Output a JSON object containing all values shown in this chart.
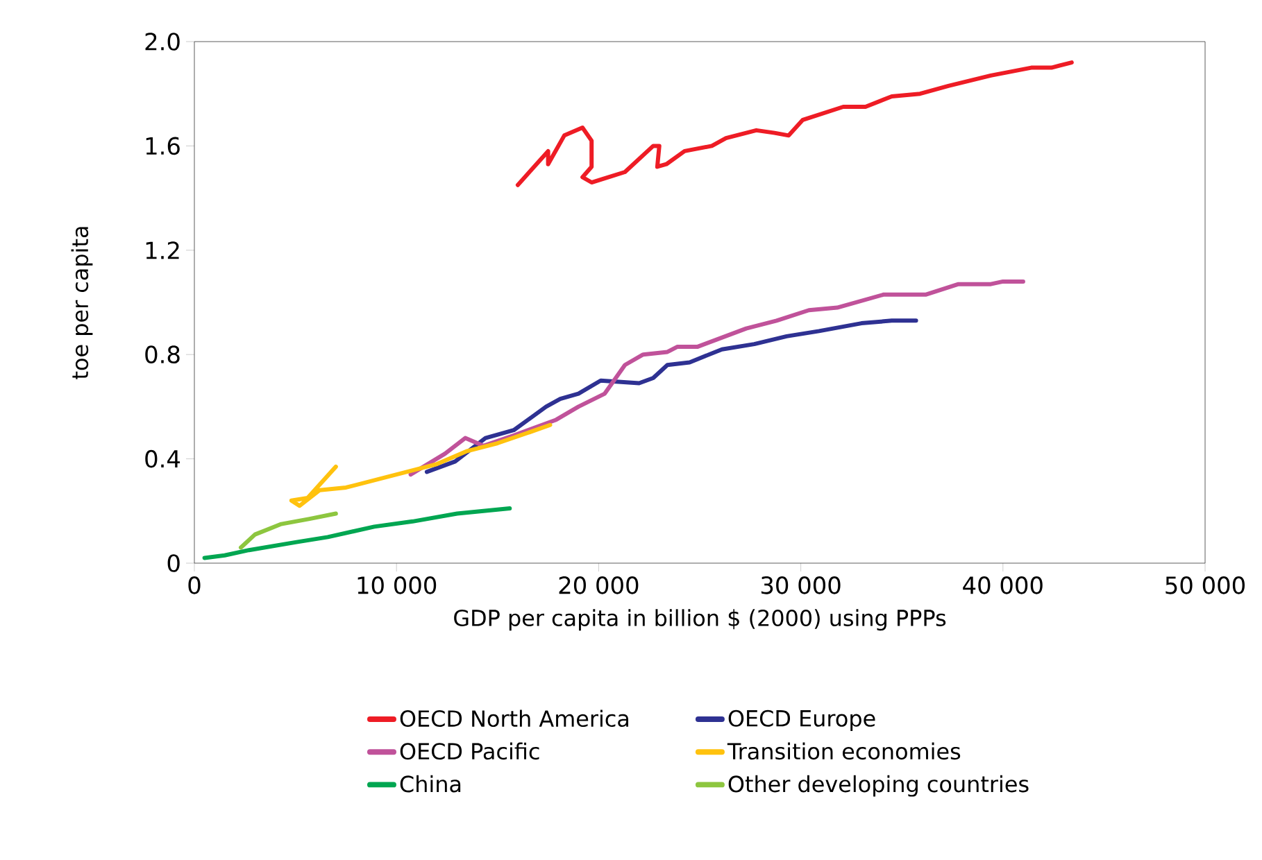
{
  "chart_data": {
    "type": "line",
    "xlabel": "GDP per capita in billion $ (2000) using PPPs",
    "ylabel": "toe per capita",
    "xlim": [
      0,
      50000
    ],
    "ylim": [
      0,
      2.0
    ],
    "xticks": [
      0,
      {
        "value": 10000,
        "label": "10 000"
      },
      {
        "value": 20000,
        "label": "20 000"
      },
      {
        "value": 30000,
        "label": "30 000"
      },
      {
        "value": 40000,
        "label": "40 000"
      },
      {
        "value": 50000,
        "label": "50 000"
      }
    ],
    "yticks": [
      0,
      0.4,
      0.8,
      1.2,
      1.6,
      {
        "value": 2.0,
        "label": "2.0"
      }
    ],
    "grid": false,
    "legend": "bottom",
    "marker": "none",
    "line_style": "solid",
    "series": [
      {
        "name": "OECD North America",
        "color": "#ee1c25",
        "x": [
          16000,
          17500,
          17500,
          18300,
          19200,
          19650,
          19650,
          19200,
          19650,
          21300,
          22700,
          23000,
          22900,
          23350,
          24250,
          25600,
          26300,
          27800,
          28700,
          29400,
          30100,
          32100,
          33200,
          34500,
          35900,
          37300,
          39400,
          41400,
          42400,
          43400
        ],
        "values": [
          1.45,
          1.58,
          1.53,
          1.64,
          1.67,
          1.62,
          1.52,
          1.48,
          1.46,
          1.5,
          1.6,
          1.6,
          1.52,
          1.53,
          1.58,
          1.6,
          1.63,
          1.66,
          1.65,
          1.64,
          1.7,
          1.75,
          1.75,
          1.79,
          1.8,
          1.83,
          1.87,
          1.9,
          1.9,
          1.92
        ]
      },
      {
        "name": "OECD Europe",
        "color": "#2e3192",
        "x": [
          11500,
          12900,
          14400,
          15800,
          17400,
          18100,
          19000,
          20100,
          22000,
          22700,
          23400,
          24500,
          26100,
          27700,
          29300,
          30900,
          33000,
          34500,
          35700
        ],
        "values": [
          0.35,
          0.39,
          0.48,
          0.51,
          0.6,
          0.63,
          0.65,
          0.7,
          0.69,
          0.71,
          0.76,
          0.77,
          0.82,
          0.84,
          0.87,
          0.89,
          0.92,
          0.93,
          0.93
        ]
      },
      {
        "name": "OECD Pacific",
        "color": "#c0529a",
        "x": [
          10700,
          12400,
          13400,
          14300,
          15800,
          17900,
          19000,
          20300,
          21300,
          22200,
          23400,
          23900,
          24900,
          27300,
          28800,
          30400,
          31800,
          34100,
          36200,
          37800,
          39400,
          40000,
          41000
        ],
        "values": [
          0.34,
          0.42,
          0.48,
          0.45,
          0.49,
          0.55,
          0.6,
          0.65,
          0.76,
          0.8,
          0.81,
          0.83,
          0.83,
          0.9,
          0.93,
          0.97,
          0.98,
          1.03,
          1.03,
          1.07,
          1.07,
          1.08,
          1.08
        ]
      },
      {
        "name": "Transition economies",
        "color": "#ffc20e",
        "x": [
          7000,
          5600,
          4800,
          5200,
          6200,
          7500,
          9000,
          10500,
          12000,
          13500,
          15000,
          16500,
          17600
        ],
        "values": [
          0.37,
          0.25,
          0.24,
          0.22,
          0.28,
          0.29,
          0.32,
          0.35,
          0.38,
          0.43,
          0.46,
          0.5,
          0.53
        ]
      },
      {
        "name": "China",
        "color": "#00a651",
        "x": [
          500,
          1500,
          2700,
          5000,
          6600,
          8900,
          10800,
          13000,
          15600
        ],
        "values": [
          0.02,
          0.03,
          0.05,
          0.08,
          0.1,
          0.14,
          0.16,
          0.19,
          0.21
        ]
      },
      {
        "name": "Other developing countries",
        "color": "#8dc63f",
        "x": [
          2300,
          3000,
          4300,
          5700,
          7000
        ],
        "values": [
          0.06,
          0.11,
          0.15,
          0.17,
          0.19
        ]
      }
    ]
  }
}
